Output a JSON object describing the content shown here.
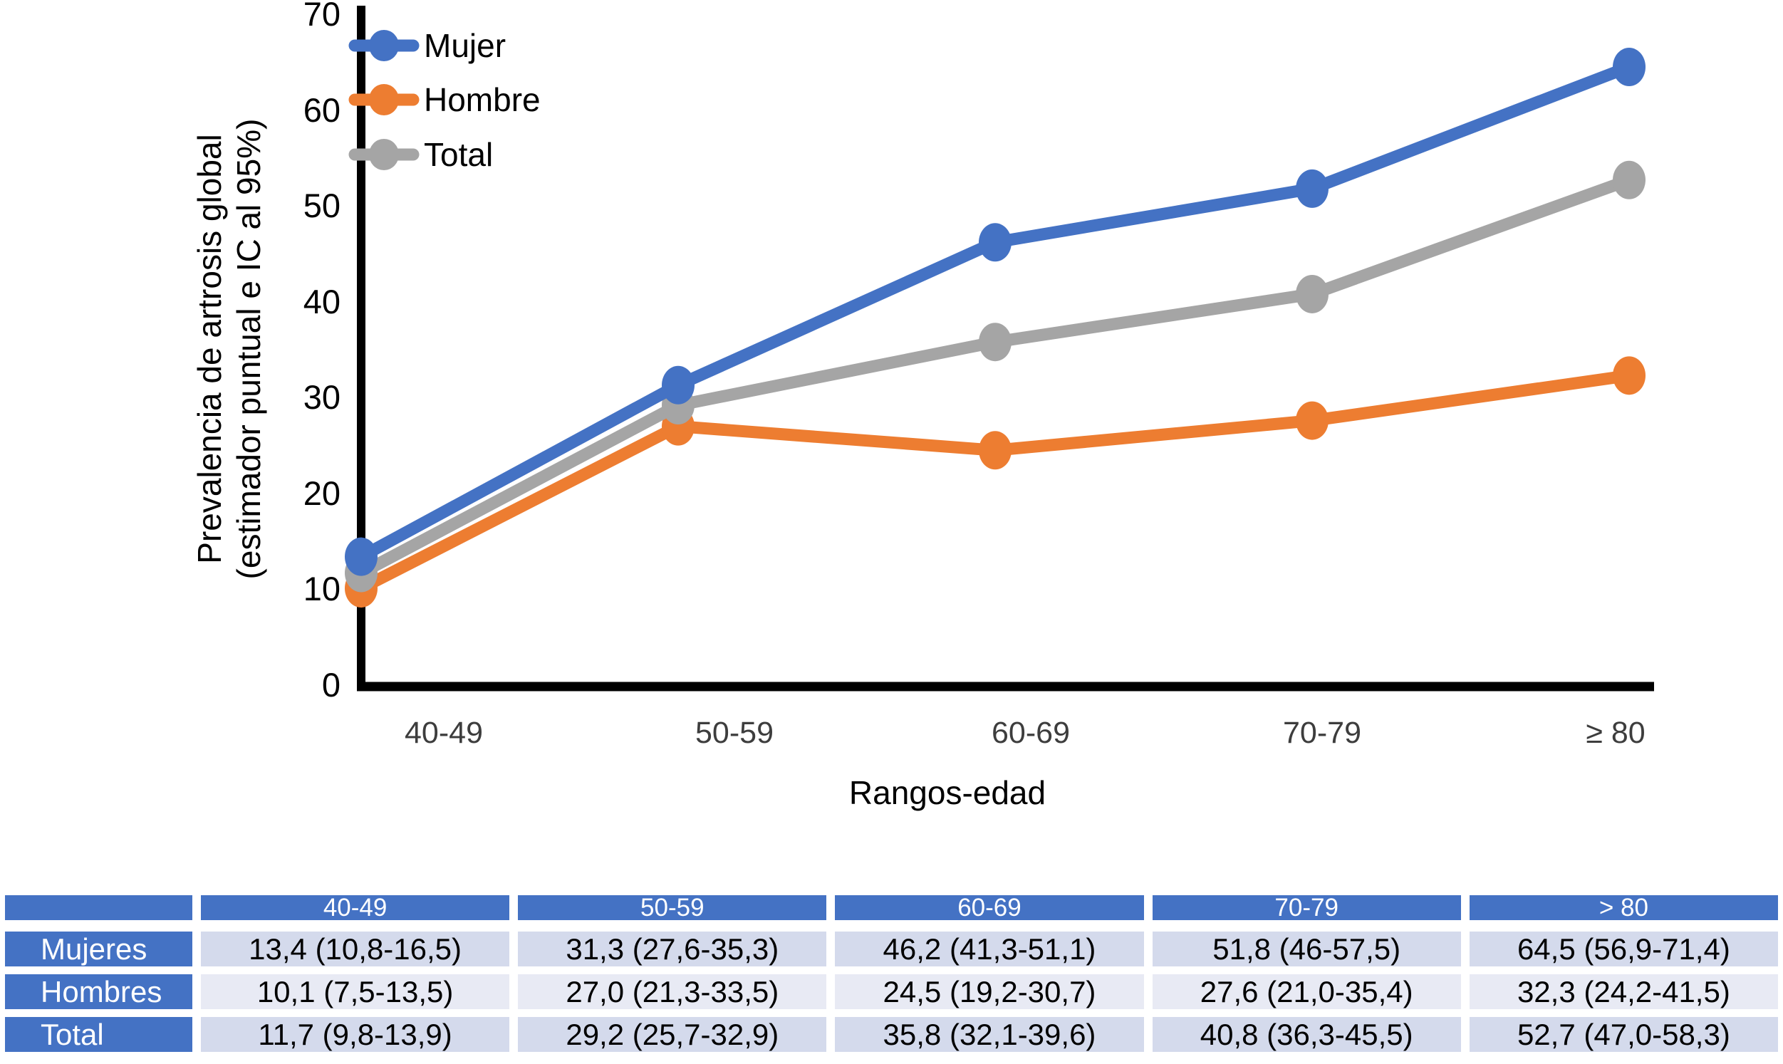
{
  "figure": {
    "x_axis_title": "Rangos-edad",
    "y_axis_title_line1": "Prevalencia de artrosis global",
    "y_axis_title_line2": "(estimador puntual e IC al 95%)"
  },
  "chart_data": {
    "type": "line",
    "categories": [
      "40-49",
      "50-59",
      "60-69",
      "70-79",
      "≥ 80"
    ],
    "series": [
      {
        "name": "Mujer",
        "color": "#4472C4",
        "values": [
          13.4,
          31.3,
          46.2,
          51.8,
          64.5
        ]
      },
      {
        "name": "Hombre",
        "color": "#ED7D31",
        "values": [
          10.1,
          27.0,
          24.5,
          27.6,
          32.3
        ]
      },
      {
        "name": "Total",
        "color": "#A5A5A5",
        "values": [
          11.7,
          29.2,
          35.8,
          40.8,
          52.7
        ]
      }
    ],
    "xlabel": "Rangos-edad",
    "ylabel": "Prevalencia de artrosis global (estimador puntual e IC al 95%)",
    "ylim": [
      0,
      70
    ],
    "yticks": [
      0,
      10,
      20,
      30,
      40,
      50,
      60,
      70
    ],
    "grid": false,
    "legend_position": "top-left",
    "axis_color": "#000000"
  },
  "table": {
    "header_fill": "#4472C4",
    "band_colors": [
      "#D4DAEC",
      "#E8EAF4"
    ],
    "col_headers": [
      "",
      "40-49",
      "50-59",
      "60-69",
      "70-79",
      "> 80"
    ],
    "rows": [
      {
        "label": "Mujeres",
        "cells": [
          "13,4 (10,8-16,5)",
          "31,3 (27,6-35,3)",
          "46,2 (41,3-51,1)",
          "51,8 (46-57,5)",
          "64,5 (56,9-71,4)"
        ]
      },
      {
        "label": "Hombres",
        "cells": [
          "10,1 (7,5-13,5)",
          "27,0 (21,3-33,5)",
          "24,5 (19,2-30,7)",
          "27,6 (21,0-35,4)",
          "32,3 (24,2-41,5)"
        ]
      },
      {
        "label": "Total",
        "cells": [
          "11,7 (9,8-13,9)",
          "29,2 (25,7-32,9)",
          "35,8 (32,1-39,6)",
          "40,8 (36,3-45,5)",
          "52,7 (47,0-58,3)"
        ]
      }
    ]
  }
}
